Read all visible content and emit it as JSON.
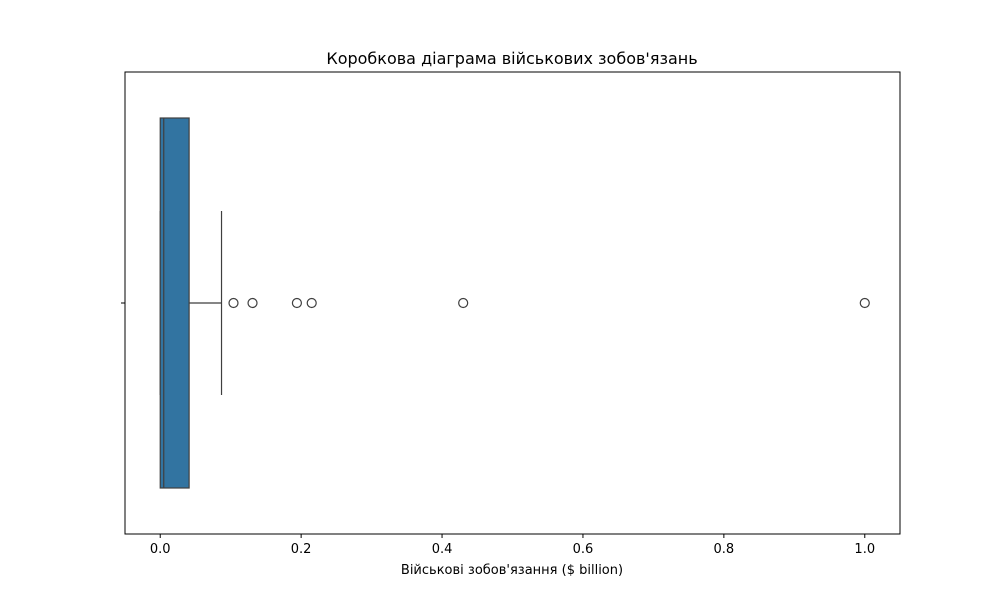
{
  "chart_data": {
    "type": "boxplot",
    "orientation": "horizontal",
    "title": "Коробкова діаграма військових зобов'язань",
    "xlabel": "Військові зобов'язання ($ billion)",
    "ylabel": "",
    "xlim": [
      -0.05,
      1.05
    ],
    "xticks": [
      0.0,
      0.2,
      0.4,
      0.6,
      0.8,
      1.0
    ],
    "xtick_labels": [
      "0.0",
      "0.2",
      "0.4",
      "0.6",
      "0.8",
      "1.0"
    ],
    "grid": false,
    "box": {
      "q1": 0.0,
      "median": 0.005,
      "q3": 0.041,
      "whisker_low": 0.0,
      "whisker_high": 0.087,
      "outliers": [
        0.104,
        0.131,
        0.194,
        0.215,
        0.43,
        1.0
      ]
    },
    "colors": {
      "box_fill": "#3274a1",
      "lines": "#3f3f3f"
    }
  }
}
